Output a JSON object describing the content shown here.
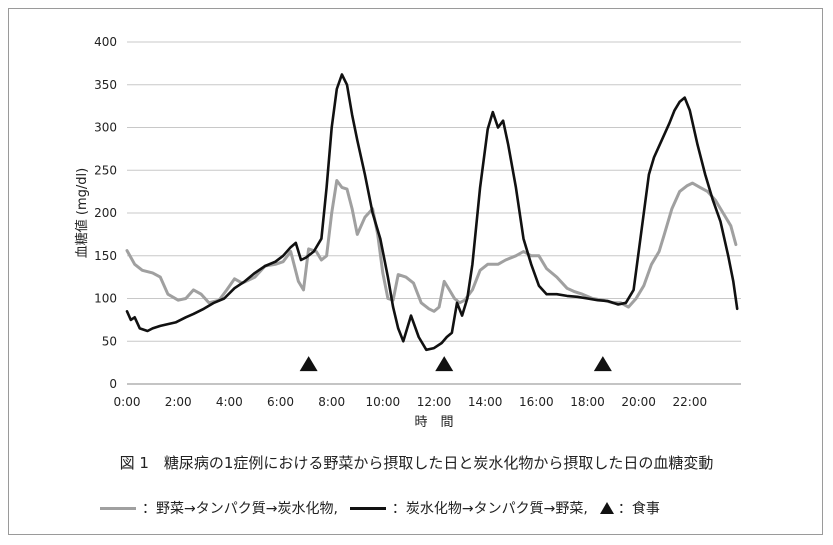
{
  "chart_data": {
    "type": "line",
    "ylabel": "血糖値 (mg/dl)",
    "xlabel": "時　間",
    "ylim": [
      0,
      400
    ],
    "xlim": [
      0,
      24
    ],
    "yticks": [
      "0",
      "50",
      "100",
      "150",
      "200",
      "250",
      "300",
      "350",
      "400"
    ],
    "xticks": [
      "0:00",
      "2:00",
      "4:00",
      "6:00",
      "8:00",
      "10:00",
      "12:00",
      "14:00",
      "16:00",
      "18:00",
      "20:00",
      "22:00"
    ],
    "series": [
      {
        "name": "野菜→タンパク質→炭水化物",
        "color": "#a0a0a0",
        "x": [
          0,
          0.3,
          0.6,
          1.0,
          1.3,
          1.6,
          2.0,
          2.3,
          2.6,
          2.9,
          3.2,
          3.6,
          3.9,
          4.2,
          4.5,
          5.0,
          5.4,
          5.8,
          6.1,
          6.4,
          6.7,
          6.9,
          7.1,
          7.4,
          7.6,
          7.8,
          8.0,
          8.2,
          8.4,
          8.6,
          8.8,
          9.0,
          9.3,
          9.6,
          9.8,
          10.0,
          10.2,
          10.4,
          10.6,
          10.9,
          11.2,
          11.5,
          11.8,
          12.0,
          12.2,
          12.4,
          12.6,
          12.8,
          13.0,
          13.2,
          13.5,
          13.8,
          14.1,
          14.5,
          14.8,
          15.2,
          15.5,
          15.8,
          16.1,
          16.4,
          16.8,
          17.2,
          17.5,
          17.8,
          18.2,
          18.6,
          19.0,
          19.3,
          19.6,
          19.9,
          20.2,
          20.5,
          20.8,
          21.0,
          21.3,
          21.6,
          21.9,
          22.1,
          22.4,
          22.7,
          23.0,
          23.3,
          23.6,
          23.8
        ],
        "values": [
          156,
          140,
          133,
          130,
          125,
          105,
          98,
          100,
          110,
          105,
          95,
          98,
          110,
          123,
          118,
          125,
          138,
          140,
          143,
          155,
          120,
          110,
          158,
          155,
          145,
          150,
          200,
          238,
          230,
          228,
          205,
          175,
          195,
          205,
          175,
          130,
          100,
          98,
          128,
          125,
          118,
          95,
          88,
          85,
          90,
          120,
          110,
          100,
          95,
          98,
          110,
          133,
          140,
          140,
          145,
          150,
          155,
          150,
          150,
          135,
          125,
          112,
          108,
          105,
          100,
          98,
          95,
          95,
          90,
          100,
          115,
          140,
          155,
          175,
          205,
          225,
          232,
          235,
          230,
          225,
          215,
          200,
          185,
          163
        ]
      },
      {
        "name": "炭水化物→タンパク質→野菜",
        "color": "#111111",
        "x": [
          0,
          0.15,
          0.3,
          0.5,
          0.8,
          1.0,
          1.3,
          1.6,
          1.9,
          2.3,
          2.6,
          3.0,
          3.4,
          3.8,
          4.2,
          4.6,
          5.0,
          5.4,
          5.8,
          6.1,
          6.4,
          6.6,
          6.8,
          7.0,
          7.3,
          7.6,
          7.8,
          8.0,
          8.2,
          8.4,
          8.6,
          8.8,
          9.0,
          9.3,
          9.6,
          9.9,
          10.2,
          10.4,
          10.6,
          10.8,
          11.1,
          11.4,
          11.7,
          12.0,
          12.3,
          12.5,
          12.7,
          12.9,
          13.1,
          13.3,
          13.5,
          13.8,
          14.1,
          14.3,
          14.5,
          14.7,
          14.9,
          15.2,
          15.5,
          15.8,
          16.1,
          16.4,
          16.8,
          17.2,
          17.6,
          18.0,
          18.4,
          18.8,
          19.2,
          19.5,
          19.8,
          20.0,
          20.2,
          20.4,
          20.6,
          20.9,
          21.2,
          21.4,
          21.6,
          21.8,
          22.0,
          22.3,
          22.6,
          22.9,
          23.2,
          23.5,
          23.7,
          23.85
        ],
        "values": [
          85,
          75,
          78,
          65,
          62,
          65,
          68,
          70,
          72,
          78,
          82,
          88,
          95,
          100,
          112,
          120,
          130,
          138,
          143,
          150,
          160,
          165,
          145,
          148,
          155,
          170,
          230,
          300,
          345,
          362,
          350,
          315,
          285,
          245,
          200,
          170,
          125,
          90,
          65,
          50,
          80,
          55,
          40,
          42,
          48,
          55,
          60,
          95,
          80,
          100,
          140,
          230,
          298,
          318,
          300,
          308,
          280,
          230,
          170,
          140,
          115,
          105,
          105,
          103,
          102,
          100,
          98,
          97,
          93,
          95,
          110,
          155,
          200,
          245,
          265,
          285,
          305,
          320,
          330,
          335,
          320,
          280,
          245,
          215,
          190,
          150,
          120,
          88
        ]
      }
    ],
    "meal_markers": {
      "symbol": "▲",
      "x": [
        7.1,
        12.4,
        18.6
      ]
    }
  },
  "caption": "図 1　糖尿病の1症例における野菜から摂取した日と炭水化物から摂取した日の血糖変動",
  "legend": {
    "item1": "：野菜→タンパク質→炭水化物,",
    "item2": "：炭水化物→タンパク質→野菜,",
    "item3": "：食事"
  }
}
